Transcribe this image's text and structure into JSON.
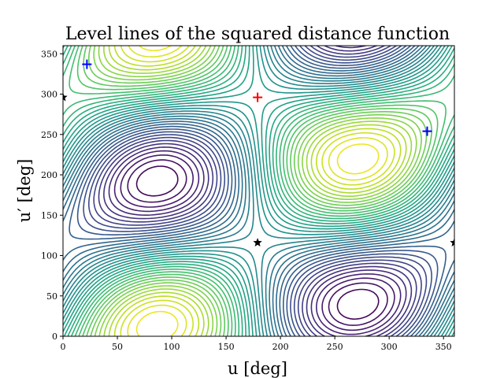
{
  "chart_data": {
    "type": "contour",
    "title": "Level lines of the squared distance function",
    "xlabel": "u [deg]",
    "ylabel": "u′ [deg]",
    "xlim": [
      0,
      360
    ],
    "ylim": [
      0,
      360
    ],
    "xticks": [
      0,
      50,
      100,
      150,
      200,
      250,
      300,
      350
    ],
    "yticks": [
      0,
      50,
      100,
      150,
      200,
      250,
      300,
      350
    ],
    "xtick_labels": [
      "0",
      "50",
      "100",
      "150",
      "200",
      "250",
      "300",
      "350"
    ],
    "ytick_labels": [
      "0",
      "50",
      "100",
      "150",
      "200",
      "250",
      "300",
      "350"
    ],
    "colormap": "viridis",
    "contour_levels": 40,
    "grid": false,
    "legend": "none",
    "markers": [
      {
        "kind": "plus",
        "color": "#ff0000",
        "x": 179,
        "y": 296
      },
      {
        "kind": "plus",
        "color": "#0000ff",
        "x": 22,
        "y": 337
      },
      {
        "kind": "plus",
        "color": "#0000ff",
        "x": 335,
        "y": 254
      },
      {
        "kind": "star",
        "color": "#000000",
        "x": 179,
        "y": 116
      },
      {
        "kind": "star",
        "color": "#000000",
        "x": 360,
        "y": 116
      },
      {
        "kind": "star",
        "color": "#000000",
        "x": 0,
        "y": 296
      }
    ]
  }
}
